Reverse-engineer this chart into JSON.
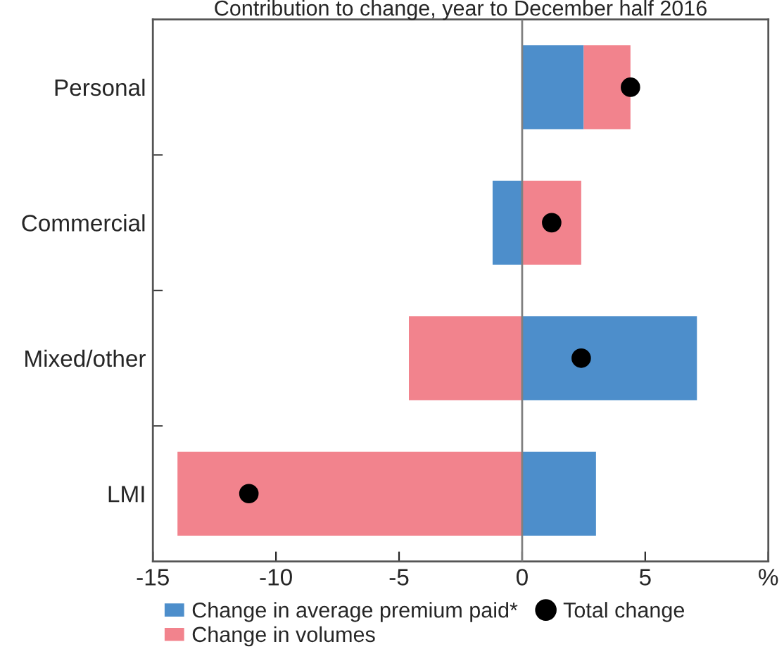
{
  "chart_data": {
    "type": "bar",
    "orientation": "horizontal",
    "stacked": true,
    "title": "Contribution to change, year to December half 2016",
    "categories": [
      "Personal",
      "Commercial",
      "Mixed/other",
      "LMI"
    ],
    "series": [
      {
        "name": "Change in average premium paid*",
        "color": "#4d8ecb",
        "values": [
          2.5,
          -1.2,
          7.1,
          3.0
        ]
      },
      {
        "name": "Change in volumes",
        "color": "#f2838d",
        "values": [
          1.9,
          2.4,
          -4.6,
          -14.0
        ]
      },
      {
        "name": "Total change",
        "type": "scatter",
        "color": "#000000",
        "marker": "circle",
        "values": [
          4.4,
          1.2,
          2.4,
          -11.1
        ]
      }
    ],
    "xlim": [
      -15,
      10
    ],
    "xticks": [
      -15,
      -10,
      -5,
      0,
      5,
      {
        "value": 10,
        "label": "%"
      }
    ],
    "ref_lines": [
      {
        "axis": "x",
        "value": 0,
        "color": "#808080"
      }
    ],
    "grid": false,
    "legend": "bottom"
  }
}
